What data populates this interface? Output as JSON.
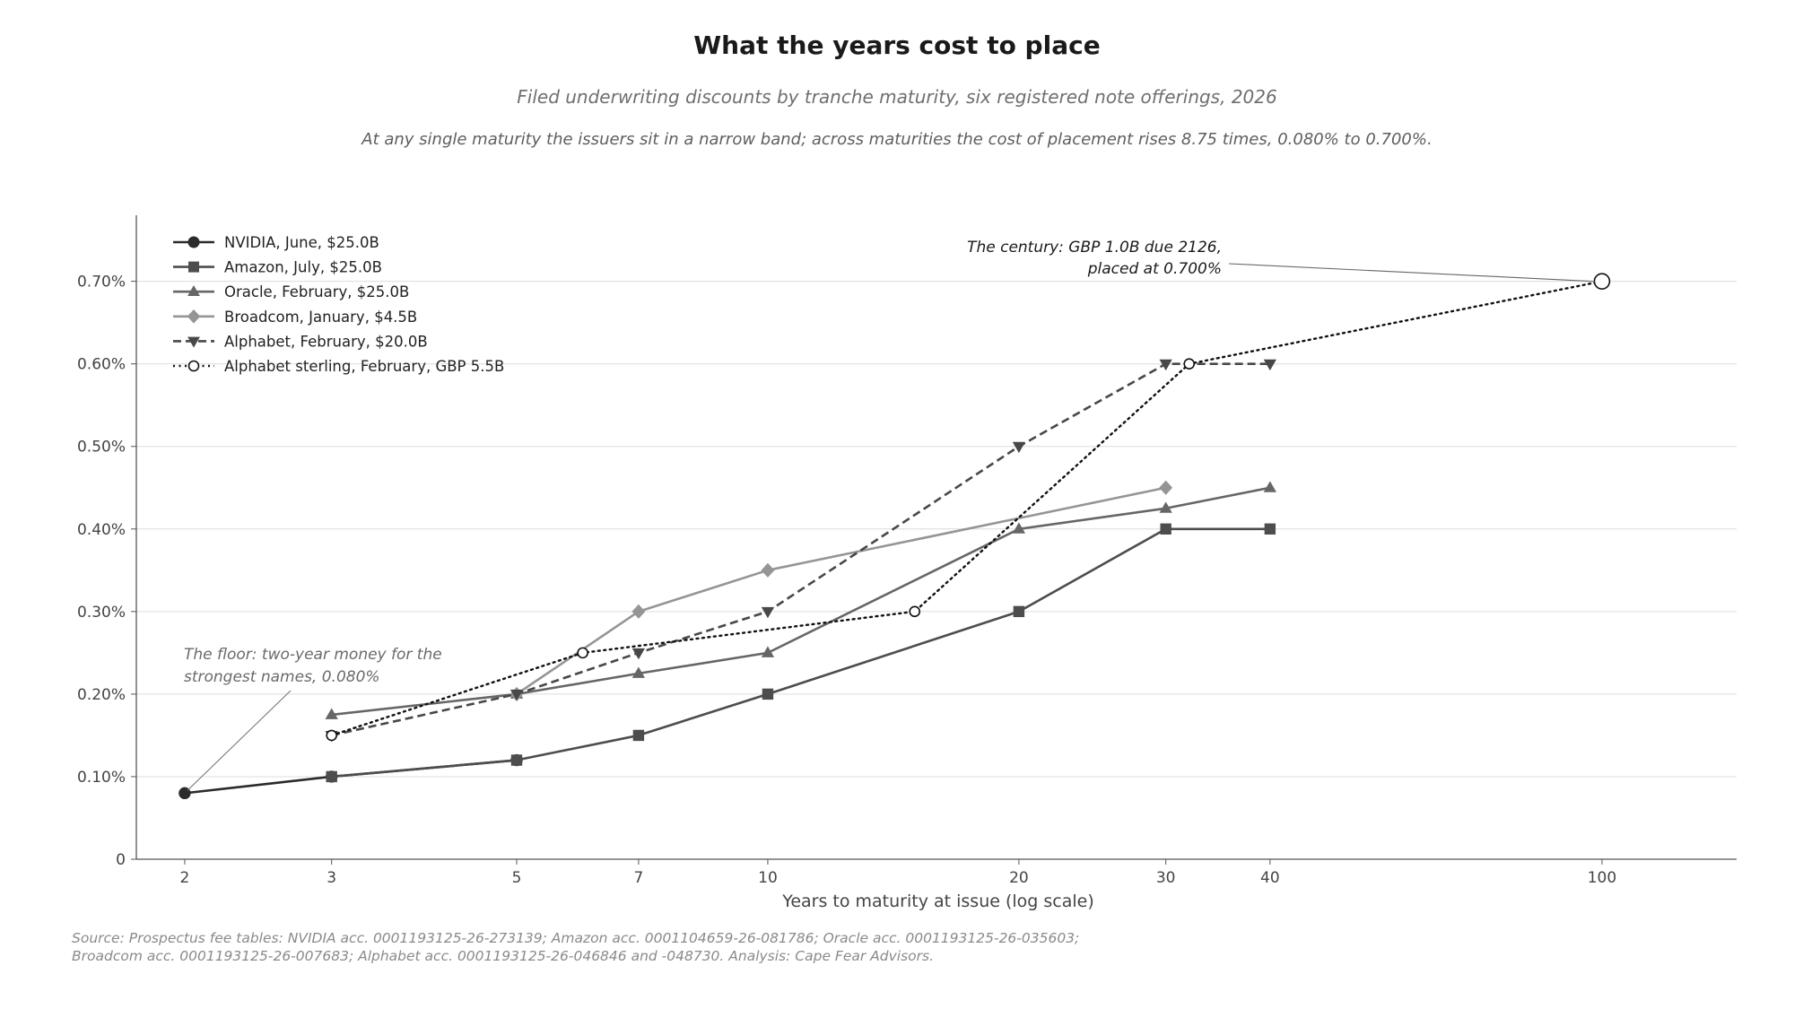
{
  "title": "What the years cost to place",
  "subtitle": "Filed underwriting discounts by tranche maturity, six registered note offerings, 2026",
  "subtitle2": "At any single maturity the issuers sit in a narrow band; across maturities the cost of placement rises 8.75 times, 0.080% to 0.700%.",
  "source_line1": "Source: Prospectus fee tables: NVIDIA acc. 0001193125-26-273139; Amazon acc. 0001104659-26-081786; Oracle acc. 0001193125-26-035603;",
  "source_line2": "Broadcom acc. 0001193125-26-007683; Alphabet acc. 0001193125-26-046846 and -048730. Analysis: Cape Fear Advisors.",
  "chart_data": {
    "type": "line",
    "xlabel": "Years to maturity at issue (log scale)",
    "ylabel": "",
    "x_scale": "log",
    "xlim": [
      1.75,
      145
    ],
    "ylim": [
      0,
      0.78
    ],
    "x_ticks": [
      2,
      3,
      5,
      7,
      10,
      20,
      30,
      40,
      100
    ],
    "x_tick_labels": [
      "2",
      "3",
      "5",
      "7",
      "10",
      "20",
      "30",
      "40",
      "100"
    ],
    "y_ticks": [
      0,
      0.1,
      0.2,
      0.3,
      0.4,
      0.5,
      0.6,
      0.7
    ],
    "y_tick_labels": [
      "0",
      "0.10%",
      "0.20%",
      "0.30%",
      "0.40%",
      "0.50%",
      "0.60%",
      "0.70%"
    ],
    "grid": "horizontal",
    "legend_position": "top-left",
    "series": [
      {
        "name": "NVIDIA, June, $25.0B",
        "color": "#2b2b2b",
        "marker": "circle",
        "dash": "solid",
        "x": [
          2,
          3,
          5
        ],
        "y": [
          0.08,
          0.1,
          0.12
        ]
      },
      {
        "name": "Amazon, July, $25.0B",
        "color": "#4d4d4d",
        "marker": "square",
        "dash": "solid",
        "x": [
          3,
          5,
          7,
          10,
          20,
          30,
          40
        ],
        "y": [
          0.1,
          0.12,
          0.15,
          0.2,
          0.3,
          0.4,
          0.4
        ]
      },
      {
        "name": "Oracle, February, $25.0B",
        "color": "#666666",
        "marker": "triangle-up",
        "dash": "solid",
        "x": [
          3,
          5,
          7,
          10,
          20,
          30,
          40
        ],
        "y": [
          0.175,
          0.2,
          0.225,
          0.25,
          0.4,
          0.425,
          0.45
        ]
      },
      {
        "name": "Broadcom, January, $4.5B",
        "color": "#959595",
        "marker": "diamond",
        "dash": "solid",
        "x": [
          5,
          7,
          10,
          30
        ],
        "y": [
          0.2,
          0.3,
          0.35,
          0.45
        ]
      },
      {
        "name": "Alphabet, February, $20.0B",
        "color": "#484848",
        "marker": "triangle-down",
        "dash": "dashed",
        "x": [
          3,
          5,
          7,
          10,
          20,
          30,
          40
        ],
        "y": [
          0.15,
          0.2,
          0.25,
          0.3,
          0.5,
          0.6,
          0.6
        ]
      },
      {
        "name": "Alphabet sterling, February, GBP 5.5B",
        "color": "#111111",
        "marker": "open-circle",
        "dash": "dotted",
        "x": [
          3,
          6,
          15,
          32,
          100
        ],
        "y": [
          0.15,
          0.25,
          0.3,
          0.6,
          0.7
        ]
      }
    ],
    "annotations": [
      {
        "text_lines": [
          "The floor: two-year money for the",
          "strongest names, 0.080%"
        ],
        "x": 2,
        "y": 0.08,
        "color": "#6a6a6a"
      },
      {
        "text_lines": [
          "The century: GBP 1.0B due 2126,",
          "placed at 0.700%"
        ],
        "x": 100,
        "y": 0.7,
        "color": "#1a1a1a"
      }
    ]
  }
}
